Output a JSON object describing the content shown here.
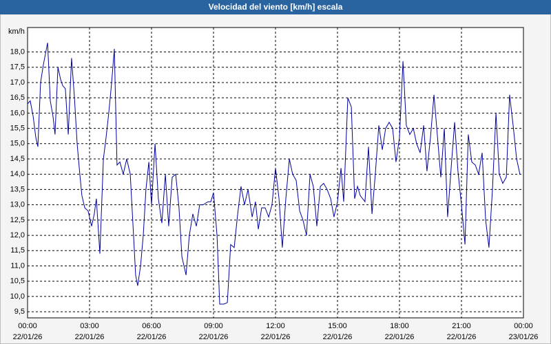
{
  "chart_data": {
    "type": "line",
    "title": "Velocidad del viento [km/h] escala",
    "y_label": "km/h",
    "color": "#0000a0",
    "grid": true,
    "xlim": [
      0,
      24
    ],
    "ylim": [
      9.3,
      18.8
    ],
    "xticks": [
      {
        "value": 0,
        "label": "00:00",
        "date": "22/01/26"
      },
      {
        "value": 3,
        "label": "03:00",
        "date": "22/01/26"
      },
      {
        "value": 6,
        "label": "06:00",
        "date": "22/01/26"
      },
      {
        "value": 9,
        "label": "09:00",
        "date": "22/01/26"
      },
      {
        "value": 12,
        "label": "12:00",
        "date": "22/01/26"
      },
      {
        "value": 15,
        "label": "15:00",
        "date": "22/01/26"
      },
      {
        "value": 18,
        "label": "18:00",
        "date": "22/01/26"
      },
      {
        "value": 21,
        "label": "21:00",
        "date": "22/01/26"
      },
      {
        "value": 24,
        "label": "00:00",
        "date": "23/01/26"
      }
    ],
    "yticks": [
      {
        "value": 9.5,
        "label": "9,5"
      },
      {
        "value": 10,
        "label": "10,0"
      },
      {
        "value": 10.5,
        "label": "10,5"
      },
      {
        "value": 11,
        "label": "11,0"
      },
      {
        "value": 11.5,
        "label": "11,5"
      },
      {
        "value": 12,
        "label": "12,0"
      },
      {
        "value": 12.5,
        "label": "12,5"
      },
      {
        "value": 13,
        "label": "13,0"
      },
      {
        "value": 13.5,
        "label": "13,5"
      },
      {
        "value": 14,
        "label": "14,0"
      },
      {
        "value": 14.5,
        "label": "14,5"
      },
      {
        "value": 15,
        "label": "15,0"
      },
      {
        "value": 15.5,
        "label": "15,5"
      },
      {
        "value": 16,
        "label": "16,0"
      },
      {
        "value": 16.5,
        "label": "16,5"
      },
      {
        "value": 17,
        "label": "17,0"
      },
      {
        "value": 17.5,
        "label": "17,5"
      },
      {
        "value": 18,
        "label": "18,0"
      }
    ],
    "x": [
      0,
      0.13,
      0.27,
      0.4,
      0.5,
      0.63,
      0.77,
      0.97,
      1.1,
      1.23,
      1.33,
      1.47,
      1.6,
      1.7,
      1.83,
      1.97,
      2.13,
      2.27,
      2.4,
      2.53,
      2.63,
      2.77,
      2.93,
      3.1,
      3.23,
      3.33,
      3.5,
      3.67,
      3.8,
      3.93,
      4.07,
      4.2,
      4.33,
      4.47,
      4.63,
      4.8,
      4.97,
      5.13,
      5.23,
      5.33,
      5.47,
      5.6,
      5.73,
      5.87,
      6,
      6.17,
      6.33,
      6.5,
      6.67,
      6.83,
      7,
      7.17,
      7.33,
      7.47,
      7.67,
      7.83,
      8,
      8.17,
      8.33,
      8.5,
      8.73,
      8.87,
      9,
      9.17,
      9.3,
      9.5,
      9.67,
      9.83,
      10,
      10.17,
      10.33,
      10.5,
      10.67,
      10.87,
      11.03,
      11.17,
      11.33,
      11.5,
      11.67,
      11.83,
      12,
      12.17,
      12.33,
      12.5,
      12.67,
      12.83,
      13,
      13.17,
      13.33,
      13.5,
      13.67,
      13.83,
      14,
      14.17,
      14.33,
      14.5,
      14.67,
      14.83,
      15,
      15.17,
      15.3,
      15.5,
      15.67,
      15.83,
      15.97,
      16.1,
      16.33,
      16.5,
      16.67,
      16.83,
      17,
      17.17,
      17.33,
      17.5,
      17.67,
      17.83,
      18,
      18.17,
      18.33,
      18.5,
      18.67,
      18.83,
      19,
      19.17,
      19.33,
      19.5,
      19.67,
      19.83,
      20,
      20.17,
      20.33,
      20.5,
      20.67,
      20.83,
      21,
      21.17,
      21.33,
      21.5,
      21.67,
      21.83,
      22,
      22.17,
      22.33,
      22.5,
      22.67,
      22.83,
      23,
      23.17,
      23.33,
      23.5,
      23.67,
      23.83
    ],
    "values": [
      16.3,
      16.4,
      15.9,
      15.2,
      14.9,
      17.0,
      17.6,
      18.3,
      16.4,
      15.9,
      15.3,
      17.5,
      17.1,
      16.9,
      16.8,
      15.3,
      17.8,
      16.5,
      15.0,
      14.0,
      13.3,
      12.9,
      12.8,
      12.3,
      12.7,
      13.2,
      11.4,
      14.5,
      15.2,
      16.0,
      17.0,
      18.1,
      14.3,
      14.4,
      14.0,
      14.5,
      14.0,
      12.0,
      10.7,
      10.35,
      11.0,
      12.0,
      13.5,
      14.4,
      13.0,
      15.0,
      13.2,
      12.4,
      14.0,
      12.3,
      13.9,
      14.0,
      12.9,
      11.3,
      10.7,
      12.0,
      12.7,
      12.3,
      13.0,
      13.0,
      13.1,
      13.1,
      13.4,
      12.0,
      9.75,
      9.75,
      9.8,
      11.7,
      11.6,
      12.7,
      13.6,
      13.0,
      13.5,
      12.6,
      13.1,
      12.2,
      12.9,
      12.9,
      12.6,
      13.0,
      14.2,
      13.2,
      11.6,
      13.2,
      14.5,
      14.0,
      13.8,
      12.8,
      12.5,
      12.0,
      14.0,
      13.6,
      12.3,
      13.6,
      13.7,
      13.5,
      13.2,
      12.6,
      13.1,
      14.2,
      13.1,
      16.5,
      16.2,
      13.2,
      13.6,
      13.3,
      13.1,
      14.9,
      12.7,
      14.0,
      15.6,
      14.8,
      15.5,
      15.7,
      15.5,
      14.4,
      15.2,
      17.7,
      15.6,
      15.3,
      15.5,
      15.0,
      14.7,
      15.6,
      14.1,
      15.2,
      16.6,
      15.3,
      13.9,
      15.5,
      12.6,
      14.2,
      15.7,
      14.1,
      13.0,
      11.7,
      15.3,
      14.4,
      14.3,
      14.0,
      14.7,
      12.5,
      11.6,
      13.5,
      16.0,
      14.0,
      13.7,
      13.9,
      16.6,
      15.6,
      14.5,
      14.0
    ]
  }
}
